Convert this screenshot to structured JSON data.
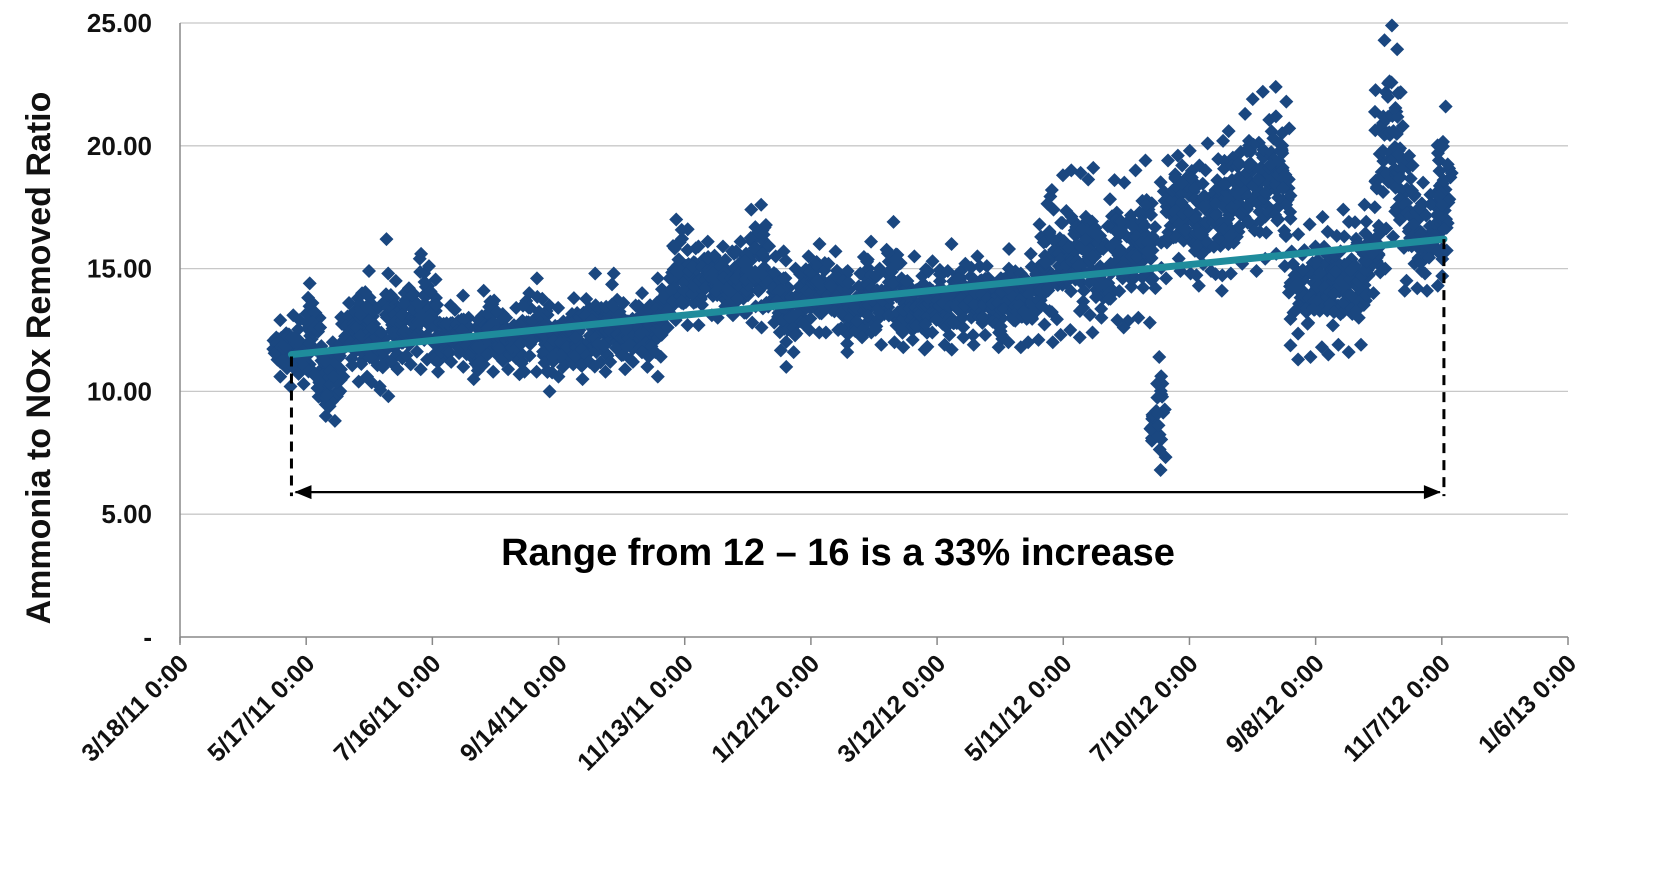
{
  "chart_data": {
    "type": "scatter",
    "title": "",
    "ylabel": "Ammonia to NOx Removed Ratio",
    "xlabel": "",
    "ylim": [
      0,
      25
    ],
    "y_ticks": [
      "-",
      "5.00",
      "10.00",
      "15.00",
      "20.00",
      "25.00"
    ],
    "y_tick_values": [
      0,
      5,
      10,
      15,
      20,
      25
    ],
    "x_ticks": [
      "3/18/11 0:00",
      "5/17/11 0:00",
      "7/16/11 0:00",
      "9/14/11 0:00",
      "11/13/11 0:00",
      "1/12/12 0:00",
      "3/12/12 0:00",
      "5/11/12 0:00",
      "7/10/12 0:00",
      "9/8/12 0:00",
      "11/7/12 0:00",
      "1/6/13 0:00"
    ],
    "x_tick_dates": [
      "2011-03-18",
      "2011-05-17",
      "2011-07-16",
      "2011-09-14",
      "2011-11-13",
      "2012-01-12",
      "2012-03-12",
      "2012-05-11",
      "2012-07-10",
      "2012-09-08",
      "2012-11-07",
      "2013-01-06"
    ],
    "xlim": [
      "2011-03-18",
      "2013-01-06"
    ],
    "grid": "horizontal",
    "marker": "diamond",
    "colors": {
      "points": "#1a4780",
      "trend": "#1f8c9c",
      "grid": "#c8c8c8",
      "axis": "#888888",
      "annotation": "#000000"
    },
    "series": [
      {
        "x": [
          "2011-05-05",
          "2011-05-10",
          "2011-05-15",
          "2011-05-20",
          "2011-05-25",
          "2011-05-30",
          "2011-06-05",
          "2011-06-10",
          "2011-06-15",
          "2011-06-20",
          "2011-06-25",
          "2011-06-30",
          "2011-07-05",
          "2011-07-10",
          "2011-07-15",
          "2011-07-20",
          "2011-07-25",
          "2011-07-30",
          "2011-08-05",
          "2011-08-10",
          "2011-08-15",
          "2011-08-20",
          "2011-08-25",
          "2011-08-30",
          "2011-09-05",
          "2011-09-10",
          "2011-09-15",
          "2011-09-20",
          "2011-09-25",
          "2011-09-30",
          "2011-10-05",
          "2011-10-10",
          "2011-10-15",
          "2011-10-20",
          "2011-10-25",
          "2011-10-30",
          "2011-11-05",
          "2011-11-10",
          "2011-11-15",
          "2011-11-20",
          "2011-11-25",
          "2011-11-30",
          "2011-12-05",
          "2011-12-10",
          "2011-12-15",
          "2011-12-20",
          "2011-12-25",
          "2011-12-30",
          "2012-01-05",
          "2012-01-10",
          "2012-01-15",
          "2012-01-20",
          "2012-01-25",
          "2012-01-30",
          "2012-02-05",
          "2012-02-10",
          "2012-02-15",
          "2012-02-20",
          "2012-02-25",
          "2012-03-01",
          "2012-03-05",
          "2012-03-10",
          "2012-03-15",
          "2012-03-20",
          "2012-03-25",
          "2012-03-30",
          "2012-04-05",
          "2012-04-10",
          "2012-04-15",
          "2012-04-20",
          "2012-04-25",
          "2012-04-30",
          "2012-05-05",
          "2012-05-10",
          "2012-05-15",
          "2012-05-20",
          "2012-05-25",
          "2012-05-30",
          "2012-06-05",
          "2012-06-10",
          "2012-06-15",
          "2012-06-20",
          "2012-06-25",
          "2012-06-30",
          "2012-07-05",
          "2012-07-10",
          "2012-07-15",
          "2012-07-20",
          "2012-07-25",
          "2012-07-30",
          "2012-08-05",
          "2012-08-10",
          "2012-08-15",
          "2012-08-20",
          "2012-08-25",
          "2012-08-30",
          "2012-09-05",
          "2012-09-10",
          "2012-09-15",
          "2012-09-20",
          "2012-09-25",
          "2012-09-30",
          "2012-10-05",
          "2012-10-10",
          "2012-10-15",
          "2012-10-20",
          "2012-10-25",
          "2012-10-30",
          "2012-11-05",
          "2012-11-08"
        ],
        "y": [
          11.8,
          12.2,
          11.5,
          13.6,
          11.4,
          10.6,
          12.1,
          11.9,
          13.4,
          11.7,
          14.8,
          12.4,
          11.9,
          15.4,
          12.9,
          11.6,
          12.6,
          12.5,
          11.8,
          12.7,
          12.2,
          12.1,
          11.8,
          12.3,
          12.6,
          11.9,
          12.0,
          12.4,
          11.7,
          12.9,
          11.9,
          12.8,
          12.2,
          12.3,
          13.0,
          11.6,
          13.3,
          14.6,
          14.9,
          14.5,
          14.8,
          15.1,
          14.6,
          15.3,
          14.8,
          15.6,
          14.2,
          14.6,
          13.6,
          14.1,
          14.5,
          13.9,
          14.6,
          13.4,
          13.9,
          14.2,
          13.7,
          14.4,
          13.3,
          14.0,
          13.5,
          14.1,
          13.6,
          14.3,
          13.5,
          14.0,
          13.8,
          13.6,
          14.2,
          13.5,
          14.0,
          14.1,
          14.5,
          15.4,
          15.3,
          16.6,
          15.5,
          15.8,
          16.1,
          15.4,
          16.3,
          15.7,
          9.1,
          16.3,
          16.8,
          17.3,
          16.4,
          17.2,
          16.6,
          17.5,
          17.4,
          17.8,
          18.1,
          18.4,
          17.6,
          14.2,
          13.8,
          14.6,
          13.4,
          14.5,
          13.9,
          14.7,
          15.6,
          19.8,
          20.6,
          17.6,
          15.2,
          14.8,
          15.7,
          16.6
        ],
        "y_band": [
          [
            10.6,
            12.9
          ],
          [
            10.2,
            13.1
          ],
          [
            10.3,
            12.9
          ],
          [
            10.8,
            14.4
          ],
          [
            9.0,
            12.6
          ],
          [
            8.8,
            12.0
          ],
          [
            10.6,
            13.6
          ],
          [
            10.4,
            13.8
          ],
          [
            10.6,
            14.9
          ],
          [
            10.2,
            13.4
          ],
          [
            9.8,
            16.2
          ],
          [
            10.9,
            14.5
          ],
          [
            11.1,
            14.2
          ],
          [
            10.9,
            15.6
          ],
          [
            11.4,
            15.1
          ],
          [
            10.8,
            12.8
          ],
          [
            11.2,
            13.5
          ],
          [
            11.0,
            13.9
          ],
          [
            10.5,
            12.6
          ],
          [
            11.1,
            14.1
          ],
          [
            10.8,
            13.7
          ],
          [
            10.9,
            13.0
          ],
          [
            10.7,
            13.4
          ],
          [
            10.8,
            14.0
          ],
          [
            10.8,
            14.6
          ],
          [
            10.0,
            13.5
          ],
          [
            10.6,
            13.4
          ],
          [
            11.1,
            13.8
          ],
          [
            10.5,
            13.2
          ],
          [
            11.2,
            14.8
          ],
          [
            10.8,
            13.4
          ],
          [
            11.2,
            14.8
          ],
          [
            10.9,
            13.6
          ],
          [
            11.2,
            13.5
          ],
          [
            11.0,
            14.0
          ],
          [
            10.6,
            14.6
          ],
          [
            12.6,
            14.6
          ],
          [
            12.9,
            17.0
          ],
          [
            12.7,
            16.6
          ],
          [
            12.7,
            15.9
          ],
          [
            13.1,
            16.1
          ],
          [
            13.0,
            15.9
          ],
          [
            13.1,
            15.7
          ],
          [
            13.2,
            16.1
          ],
          [
            12.8,
            17.4
          ],
          [
            12.6,
            17.6
          ],
          [
            12.8,
            15.5
          ],
          [
            11.0,
            15.7
          ],
          [
            11.6,
            15.0
          ],
          [
            12.5,
            15.5
          ],
          [
            12.4,
            16.0
          ],
          [
            12.4,
            15.2
          ],
          [
            12.5,
            15.7
          ],
          [
            11.6,
            14.9
          ],
          [
            12.2,
            14.8
          ],
          [
            12.4,
            16.1
          ],
          [
            11.9,
            15.0
          ],
          [
            12.0,
            16.9
          ],
          [
            11.8,
            14.6
          ],
          [
            12.1,
            15.5
          ],
          [
            11.7,
            14.7
          ],
          [
            12.4,
            15.3
          ],
          [
            11.9,
            14.8
          ],
          [
            11.7,
            16.0
          ],
          [
            12.2,
            15.2
          ],
          [
            11.9,
            15.5
          ],
          [
            12.3,
            15.1
          ],
          [
            11.8,
            14.6
          ],
          [
            12.0,
            15.8
          ],
          [
            11.8,
            14.8
          ],
          [
            12.0,
            15.6
          ],
          [
            12.1,
            16.8
          ],
          [
            12.0,
            18.2
          ],
          [
            12.3,
            18.8
          ],
          [
            12.5,
            19.0
          ],
          [
            12.2,
            18.9
          ],
          [
            12.4,
            19.1
          ],
          [
            13.0,
            16.0
          ],
          [
            12.9,
            18.6
          ],
          [
            12.6,
            18.5
          ],
          [
            13.0,
            19.0
          ],
          [
            12.8,
            19.4
          ],
          [
            6.8,
            11.4
          ],
          [
            14.6,
            19.4
          ],
          [
            14.9,
            19.6
          ],
          [
            14.8,
            19.8
          ],
          [
            14.3,
            19.2
          ],
          [
            14.9,
            20.1
          ],
          [
            14.1,
            20.2
          ],
          [
            14.8,
            20.6
          ],
          [
            15.2,
            21.3
          ],
          [
            14.9,
            21.9
          ],
          [
            15.4,
            22.2
          ],
          [
            15.6,
            22.4
          ],
          [
            15.1,
            21.8
          ],
          [
            11.3,
            16.4
          ],
          [
            11.4,
            16.8
          ],
          [
            11.8,
            17.1
          ],
          [
            11.5,
            16.5
          ],
          [
            11.9,
            17.4
          ],
          [
            11.6,
            16.9
          ],
          [
            11.9,
            17.6
          ],
          [
            14.0,
            17.5
          ],
          [
            15.0,
            24.3
          ],
          [
            16.3,
            24.9
          ],
          [
            14.1,
            20.8
          ],
          [
            14.2,
            19.2
          ],
          [
            14.1,
            18.5
          ],
          [
            14.3,
            19.7
          ],
          [
            14.7,
            21.6
          ]
        ]
      }
    ],
    "trendline": {
      "x": [
        "2011-05-10",
        "2012-11-08"
      ],
      "y": [
        11.5,
        16.2
      ]
    },
    "annotations": [
      {
        "text": "Range from 12 – 16 is  a 33% increase",
        "type": "range-arrow",
        "x_start": "2011-05-10",
        "x_end": "2012-11-08",
        "y": 5.9
      }
    ]
  }
}
